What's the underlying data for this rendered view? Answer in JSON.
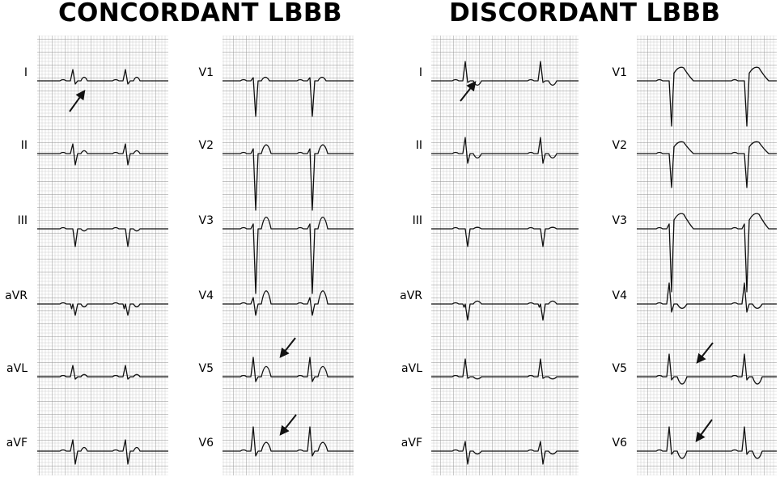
{
  "figure": {
    "concordant": {
      "title": "CONCORDANT LBBB",
      "limb_leads": [
        "I",
        "II",
        "III",
        "aVR",
        "aVL",
        "aVF"
      ],
      "precordial_leads": [
        "V1",
        "V2",
        "V3",
        "V4",
        "V5",
        "V6"
      ],
      "arrows": [
        "I",
        "V5",
        "V6"
      ]
    },
    "discordant": {
      "title": "DISCORDANT LBBB",
      "limb_leads": [
        "I",
        "II",
        "III",
        "aVR",
        "aVL",
        "aVF"
      ],
      "precordial_leads": [
        "V1",
        "V2",
        "V3",
        "V4",
        "V5",
        "V6"
      ],
      "arrows": [
        "I",
        "V5",
        "V6"
      ]
    }
  },
  "colors": {
    "grid_minor": "#c9c9c9",
    "grid_major": "#8e8e8e",
    "trace": "#111111",
    "background": "#ffffff"
  }
}
